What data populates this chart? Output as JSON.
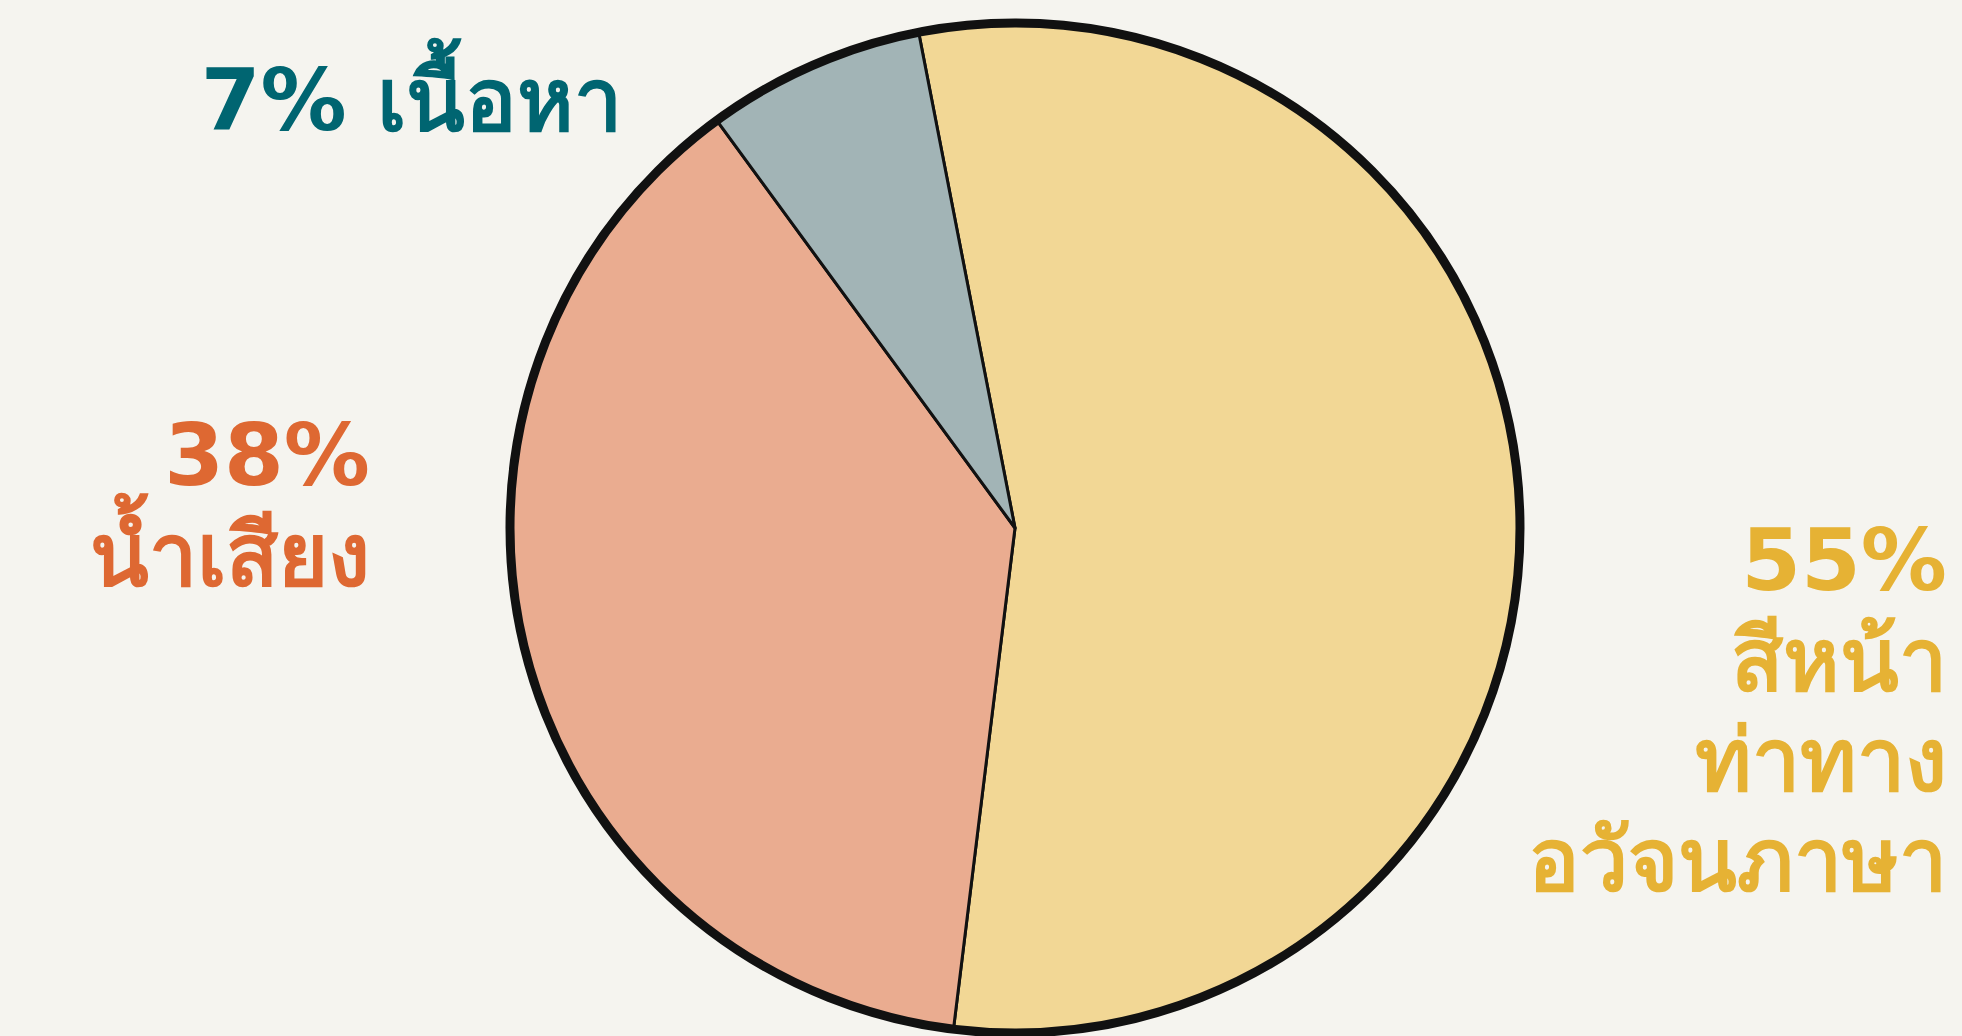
{
  "chart_data": {
    "type": "pie",
    "categories": [
      "สีหน้า\nท่าทาง\nอวัจนภาษา",
      "น้ำเสียง",
      "เนื้อหา"
    ],
    "values": [
      55,
      38,
      7
    ],
    "colors": [
      "#f2d795",
      "#eaac90",
      "#a2b4b6"
    ],
    "value_labels": [
      "55%",
      "38%",
      "7%"
    ]
  }
}
